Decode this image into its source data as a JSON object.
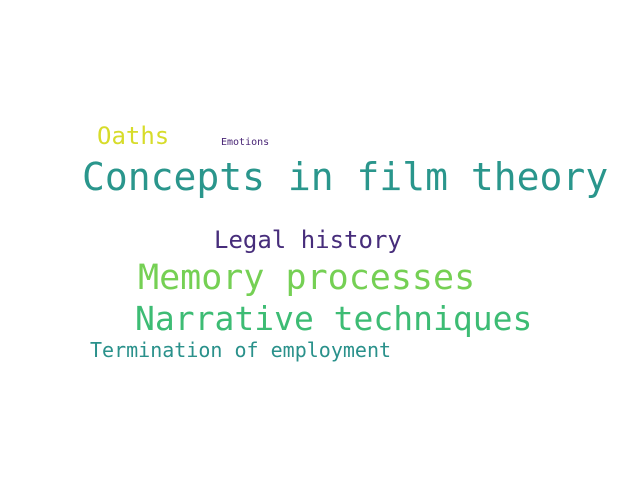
{
  "words": [
    {
      "id": "oaths",
      "text": "Oaths",
      "color": "#d7dc2a"
    },
    {
      "id": "emotions",
      "text": "Emotions",
      "color": "#482475"
    },
    {
      "id": "concepts",
      "text": "Concepts in film theory",
      "color": "#2a968c"
    },
    {
      "id": "legal",
      "text": "Legal history",
      "color": "#472d7b"
    },
    {
      "id": "memory",
      "text": "Memory processes",
      "color": "#75d054"
    },
    {
      "id": "narrative",
      "text": "Narrative techniques",
      "color": "#3dbc74"
    },
    {
      "id": "termination",
      "text": "Termination of employment",
      "color": "#2a918b"
    }
  ]
}
